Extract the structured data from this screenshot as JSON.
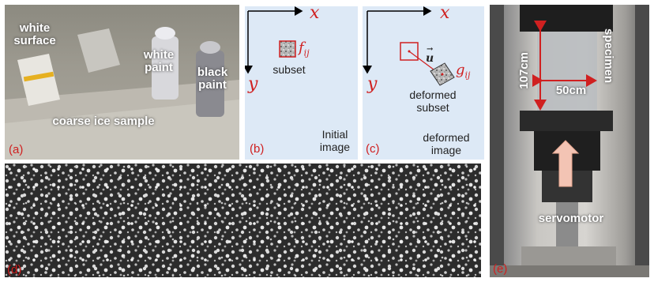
{
  "panel_a": {
    "label": "(a)",
    "white_surface": "white surface",
    "white_paint": "white paint",
    "black_paint": "black paint",
    "coarse_ice": "coarse ice sample"
  },
  "panel_b": {
    "label": "(b)",
    "x_axis": "x",
    "y_axis": "y",
    "f_symbol": "f",
    "f_sub": "ij",
    "subset": "subset",
    "caption": "Initial image"
  },
  "panel_c": {
    "label": "(c)",
    "x_axis": "x",
    "y_axis": "y",
    "vector": "u",
    "g_symbol": "g",
    "g_sub": "ij",
    "deformed_subset": "deformed subset",
    "caption": "deformed image"
  },
  "panel_d": {
    "label": "(d)"
  },
  "panel_e": {
    "label": "(e)",
    "height": "107cm",
    "width": "50cm",
    "specimen": "specimen",
    "servomotor": "servomotor"
  }
}
